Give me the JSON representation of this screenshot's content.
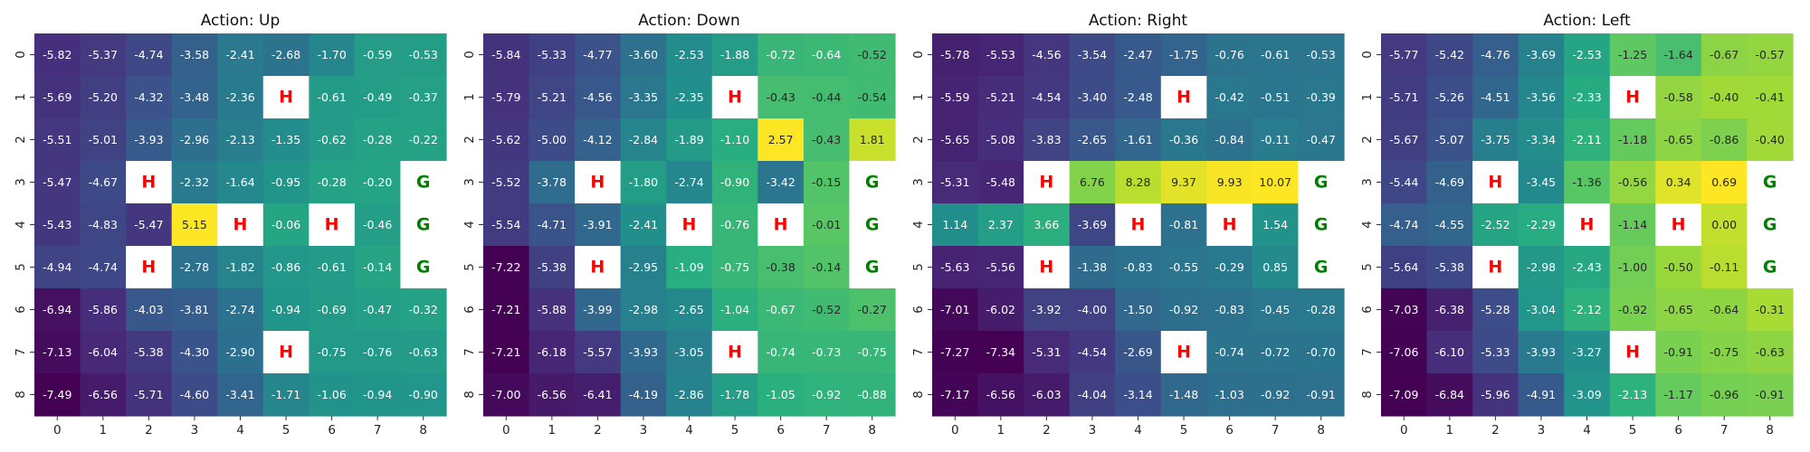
{
  "chart_data": [
    {
      "type": "heatmap",
      "title": "Action: Up",
      "x_ticks": [
        "0",
        "1",
        "2",
        "3",
        "4",
        "5",
        "6",
        "7",
        "8"
      ],
      "y_ticks": [
        "0",
        "1",
        "2",
        "3",
        "4",
        "5",
        "6",
        "7",
        "8"
      ],
      "cells": [
        [
          "-5.82",
          "-5.37",
          "-4.74",
          "-3.58",
          "-2.41",
          "-2.68",
          "-1.70",
          "-0.59",
          "-0.53"
        ],
        [
          "-5.69",
          "-5.20",
          "-4.32",
          "-3.48",
          "-2.36",
          "H",
          "-0.61",
          "-0.49",
          "-0.37"
        ],
        [
          "-5.51",
          "-5.01",
          "-3.93",
          "-2.96",
          "-2.13",
          "-1.35",
          "-0.62",
          "-0.28",
          "-0.22"
        ],
        [
          "-5.47",
          "-4.67",
          "H",
          "-2.32",
          "-1.64",
          "-0.95",
          "-0.28",
          "-0.20",
          "G"
        ],
        [
          "-5.43",
          "-4.83",
          "-5.47",
          "5.15",
          "H",
          "-0.06",
          "H",
          "-0.46",
          "G"
        ],
        [
          "-4.94",
          "-4.74",
          "H",
          "-2.78",
          "-1.82",
          "-0.86",
          "-0.61",
          "-0.14",
          "G"
        ],
        [
          "-6.94",
          "-5.86",
          "-4.03",
          "-3.81",
          "-2.74",
          "-0.94",
          "-0.69",
          "-0.47",
          "-0.32"
        ],
        [
          "-7.13",
          "-6.04",
          "-5.38",
          "-4.30",
          "-2.90",
          "H",
          "-0.75",
          "-0.76",
          "-0.63"
        ],
        [
          "-7.49",
          "-6.56",
          "-5.71",
          "-4.60",
          "-3.41",
          "-1.71",
          "-1.06",
          "-0.94",
          "-0.90"
        ]
      ]
    },
    {
      "type": "heatmap",
      "title": "Action: Down",
      "x_ticks": [
        "0",
        "1",
        "2",
        "3",
        "4",
        "5",
        "6",
        "7",
        "8"
      ],
      "y_ticks": [
        "0",
        "1",
        "2",
        "3",
        "4",
        "5",
        "6",
        "7",
        "8"
      ],
      "cells": [
        [
          "-5.84",
          "-5.33",
          "-4.77",
          "-3.60",
          "-2.53",
          "-1.88",
          "-0.72",
          "-0.64",
          "-0.52"
        ],
        [
          "-5.79",
          "-5.21",
          "-4.56",
          "-3.35",
          "-2.35",
          "H",
          "-0.43",
          "-0.44",
          "-0.54"
        ],
        [
          "-5.62",
          "-5.00",
          "-4.12",
          "-2.84",
          "-1.89",
          "-1.10",
          "2.57",
          "-0.43",
          "1.81"
        ],
        [
          "-5.52",
          "-3.78",
          "H",
          "-1.80",
          "-2.74",
          "-0.90",
          "-3.42",
          "-0.15",
          "G"
        ],
        [
          "-5.54",
          "-4.71",
          "-3.91",
          "-2.41",
          "H",
          "-0.76",
          "H",
          "-0.01",
          "G"
        ],
        [
          "-7.22",
          "-5.38",
          "H",
          "-2.95",
          "-1.09",
          "-0.75",
          "-0.38",
          "-0.14",
          "G"
        ],
        [
          "-7.21",
          "-5.88",
          "-3.99",
          "-2.98",
          "-2.65",
          "-1.04",
          "-0.67",
          "-0.52",
          "-0.27"
        ],
        [
          "-7.21",
          "-6.18",
          "-5.57",
          "-3.93",
          "-3.05",
          "H",
          "-0.74",
          "-0.73",
          "-0.75"
        ],
        [
          "-7.00",
          "-6.56",
          "-6.41",
          "-4.19",
          "-2.86",
          "-1.78",
          "-1.05",
          "-0.92",
          "-0.88"
        ]
      ]
    },
    {
      "type": "heatmap",
      "title": "Action: Right",
      "x_ticks": [
        "0",
        "1",
        "2",
        "3",
        "4",
        "5",
        "6",
        "7",
        "8"
      ],
      "y_ticks": [
        "0",
        "1",
        "2",
        "3",
        "4",
        "5",
        "6",
        "7",
        "8"
      ],
      "cells": [
        [
          "-5.78",
          "-5.53",
          "-4.56",
          "-3.54",
          "-2.47",
          "-1.75",
          "-0.76",
          "-0.61",
          "-0.53"
        ],
        [
          "-5.59",
          "-5.21",
          "-4.54",
          "-3.40",
          "-2.48",
          "H",
          "-0.42",
          "-0.51",
          "-0.39"
        ],
        [
          "-5.65",
          "-5.08",
          "-3.83",
          "-2.65",
          "-1.61",
          "-0.36",
          "-0.84",
          "-0.11",
          "-0.47"
        ],
        [
          "-5.31",
          "-5.48",
          "H",
          "6.76",
          "8.28",
          "9.37",
          "9.93",
          "10.07",
          "G"
        ],
        [
          "1.14",
          "2.37",
          "3.66",
          "-3.69",
          "H",
          "-0.81",
          "H",
          "1.54",
          "G"
        ],
        [
          "-5.63",
          "-5.56",
          "H",
          "-1.38",
          "-0.83",
          "-0.55",
          "-0.29",
          "0.85",
          "G"
        ],
        [
          "-7.01",
          "-6.02",
          "-3.92",
          "-4.00",
          "-1.50",
          "-0.92",
          "-0.83",
          "-0.45",
          "-0.28"
        ],
        [
          "-7.27",
          "-7.34",
          "-5.31",
          "-4.54",
          "-2.69",
          "H",
          "-0.74",
          "-0.72",
          "-0.70"
        ],
        [
          "-7.17",
          "-6.56",
          "-6.03",
          "-4.04",
          "-3.14",
          "-1.48",
          "-1.03",
          "-0.92",
          "-0.91"
        ]
      ]
    },
    {
      "type": "heatmap",
      "title": "Action: Left",
      "x_ticks": [
        "0",
        "1",
        "2",
        "3",
        "4",
        "5",
        "6",
        "7",
        "8"
      ],
      "y_ticks": [
        "0",
        "1",
        "2",
        "3",
        "4",
        "5",
        "6",
        "7",
        "8"
      ],
      "cells": [
        [
          "-5.77",
          "-5.42",
          "-4.76",
          "-3.69",
          "-2.53",
          "-1.25",
          "-1.64",
          "-0.67",
          "-0.57"
        ],
        [
          "-5.71",
          "-5.26",
          "-4.51",
          "-3.56",
          "-2.33",
          "H",
          "-0.58",
          "-0.40",
          "-0.41"
        ],
        [
          "-5.67",
          "-5.07",
          "-3.75",
          "-3.34",
          "-2.11",
          "-1.18",
          "-0.65",
          "-0.86",
          "-0.40"
        ],
        [
          "-5.44",
          "-4.69",
          "H",
          "-3.45",
          "-1.36",
          "-0.56",
          "0.34",
          "0.69",
          "G"
        ],
        [
          "-4.74",
          "-4.55",
          "-2.52",
          "-2.29",
          "H",
          "-1.14",
          "H",
          "0.00",
          "G"
        ],
        [
          "-5.64",
          "-5.38",
          "H",
          "-2.98",
          "-2.43",
          "-1.00",
          "-0.50",
          "-0.11",
          "G"
        ],
        [
          "-7.03",
          "-6.38",
          "-5.28",
          "-3.04",
          "-2.12",
          "-0.92",
          "-0.65",
          "-0.64",
          "-0.31"
        ],
        [
          "-7.06",
          "-6.10",
          "-5.33",
          "-3.93",
          "-3.27",
          "H",
          "-0.91",
          "-0.75",
          "-0.63"
        ],
        [
          "-7.09",
          "-6.84",
          "-5.96",
          "-4.91",
          "-3.09",
          "-2.13",
          "-1.17",
          "-0.96",
          "-0.91"
        ]
      ]
    }
  ],
  "colors": {
    "colormap": "viridis",
    "hole_text": "#ff0000",
    "goal_text": "#008000",
    "special_cell_bg": "#ffffff"
  }
}
